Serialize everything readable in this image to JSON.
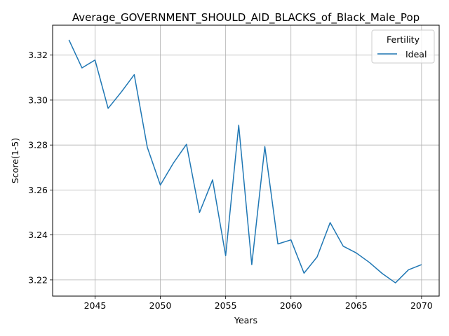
{
  "chart_data": {
    "type": "line",
    "title": "Average_GOVERNMENT_SHOULD_AID_BLACKS_of_Black_Male_Pop",
    "xlabel": "Years",
    "ylabel": "Score(1-5)",
    "xlim": [
      2041.75,
      2071.35
    ],
    "ylim": [
      3.2128,
      3.3333
    ],
    "x_ticks": [
      2045,
      2050,
      2055,
      2060,
      2065,
      2070
    ],
    "y_ticks": [
      3.22,
      3.24,
      3.26,
      3.28,
      3.3,
      3.32
    ],
    "grid": true,
    "legend": {
      "title": "Fertility",
      "placement": "top-right"
    },
    "series": [
      {
        "name": "Ideal",
        "color": "#1f77b4",
        "x": [
          2043,
          2044,
          2045,
          2046,
          2047,
          2048,
          2049,
          2050,
          2051,
          2052,
          2053,
          2054,
          2055,
          2056,
          2057,
          2058,
          2059,
          2060,
          2061,
          2062,
          2063,
          2064,
          2065,
          2066,
          2067,
          2068,
          2069,
          2070
        ],
        "y": [
          3.3268,
          3.3143,
          3.3178,
          3.2963,
          3.3035,
          3.3113,
          3.279,
          3.2622,
          3.272,
          3.2803,
          3.25,
          3.2645,
          3.2308,
          3.2888,
          3.2268,
          3.2793,
          3.236,
          3.2378,
          3.223,
          3.2302,
          3.2455,
          3.235,
          3.232,
          3.2278,
          3.2228,
          3.2187,
          3.2245,
          3.2268
        ]
      }
    ]
  }
}
